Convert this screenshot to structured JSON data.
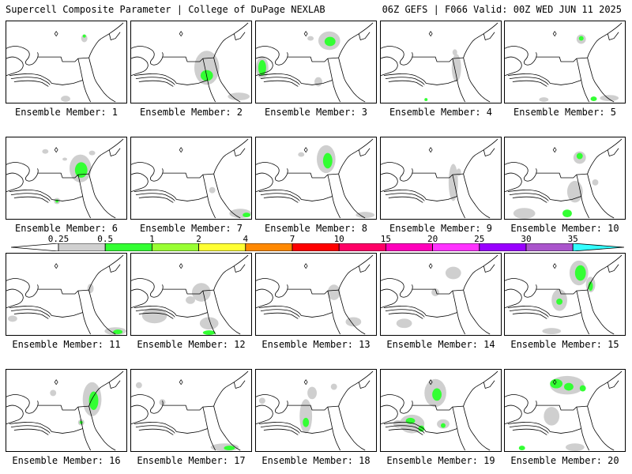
{
  "header": {
    "title_left": "Supercell Composite Parameter | College of DuPage NEXLAB",
    "title_right": "06Z GEFS | F066 Valid: 00Z WED JUN 11 2025"
  },
  "panel_label_prefix": "Ensemble Member:",
  "members": [
    {
      "n": "1",
      "blobs": [
        [
          "g",
          100,
          22,
          4,
          5
        ],
        [
          "g",
          76,
          100,
          6,
          4
        ],
        [
          "G",
          100,
          19,
          2,
          2
        ]
      ]
    },
    {
      "n": "2",
      "blobs": [
        [
          "g",
          97,
          60,
          16,
          22
        ],
        [
          "G",
          97,
          70,
          8,
          7
        ],
        [
          "g",
          138,
          97,
          14,
          5
        ]
      ]
    },
    {
      "n": "3",
      "blobs": [
        [
          "g",
          94,
          25,
          14,
          12
        ],
        [
          "G",
          95,
          26,
          7,
          6
        ],
        [
          "g",
          70,
          22,
          4,
          3
        ],
        [
          "g",
          8,
          60,
          8,
          14
        ],
        [
          "G",
          8,
          60,
          5,
          10
        ],
        [
          "g",
          80,
          78,
          5,
          6
        ]
      ]
    },
    {
      "n": "4",
      "blobs": [
        [
          "g",
          97,
          60,
          6,
          18
        ],
        [
          "g",
          95,
          40,
          3,
          4
        ],
        [
          "G",
          58,
          101,
          2,
          2
        ]
      ]
    },
    {
      "n": "5",
      "blobs": [
        [
          "g",
          98,
          23,
          6,
          6
        ],
        [
          "G",
          98,
          22,
          3,
          3
        ],
        [
          "g",
          134,
          99,
          12,
          4
        ],
        [
          "G",
          114,
          100,
          4,
          3
        ],
        [
          "g",
          50,
          101,
          6,
          3
        ]
      ]
    },
    {
      "n": "6",
      "blobs": [
        [
          "g",
          95,
          40,
          14,
          18
        ],
        [
          "G",
          96,
          42,
          8,
          10
        ],
        [
          "g",
          75,
          28,
          3,
          2
        ],
        [
          "g",
          50,
          18,
          4,
          3
        ],
        [
          "g",
          110,
          20,
          4,
          3
        ],
        [
          "g",
          65,
          82,
          4,
          4
        ],
        [
          "G",
          65,
          82,
          2,
          2
        ]
      ]
    },
    {
      "n": "7",
      "blobs": [
        [
          "g",
          140,
          98,
          14,
          6
        ],
        [
          "G",
          148,
          100,
          5,
          3
        ],
        [
          "g",
          104,
          68,
          4,
          4
        ]
      ]
    },
    {
      "n": "8",
      "blobs": [
        [
          "g",
          90,
          28,
          12,
          18
        ],
        [
          "G",
          92,
          30,
          6,
          10
        ],
        [
          "g",
          58,
          22,
          4,
          3
        ],
        [
          "g",
          140,
          100,
          12,
          4
        ]
      ]
    },
    {
      "n": "9",
      "blobs": [
        [
          "g",
          93,
          58,
          6,
          24
        ],
        [
          "g",
          100,
          45,
          3,
          5
        ]
      ]
    },
    {
      "n": "10",
      "blobs": [
        [
          "g",
          96,
          26,
          8,
          8
        ],
        [
          "G",
          96,
          24,
          4,
          4
        ],
        [
          "g",
          90,
          70,
          10,
          14
        ],
        [
          "G",
          80,
          98,
          6,
          5
        ],
        [
          "g",
          25,
          98,
          14,
          7
        ],
        [
          "g",
          116,
          58,
          4,
          4
        ]
      ]
    },
    {
      "n": "11",
      "blobs": [
        [
          "g",
          140,
          100,
          14,
          5
        ],
        [
          "G",
          143,
          101,
          6,
          3
        ],
        [
          "g",
          108,
          45,
          4,
          6
        ],
        [
          "g",
          8,
          84,
          6,
          4
        ]
      ]
    },
    {
      "n": "12",
      "blobs": [
        [
          "g",
          90,
          50,
          12,
          12
        ],
        [
          "g",
          100,
          90,
          12,
          8
        ],
        [
          "g",
          30,
          80,
          16,
          10
        ],
        [
          "G",
          100,
          102,
          8,
          3
        ],
        [
          "g",
          76,
          60,
          6,
          5
        ]
      ]
    },
    {
      "n": "13",
      "blobs": [
        [
          "g",
          100,
          50,
          8,
          10
        ],
        [
          "g",
          125,
          88,
          10,
          6
        ]
      ]
    },
    {
      "n": "14",
      "blobs": [
        [
          "g",
          93,
          25,
          10,
          8
        ],
        [
          "g",
          30,
          90,
          10,
          6
        ],
        [
          "g",
          70,
          50,
          5,
          5
        ]
      ]
    },
    {
      "n": "15",
      "blobs": [
        [
          "g",
          95,
          25,
          12,
          16
        ],
        [
          "G",
          97,
          25,
          7,
          10
        ],
        [
          "g",
          110,
          40,
          6,
          10
        ],
        [
          "G",
          110,
          42,
          3,
          6
        ],
        [
          "g",
          70,
          60,
          10,
          14
        ],
        [
          "G",
          70,
          62,
          4,
          4
        ],
        [
          "g",
          60,
          100,
          12,
          4
        ]
      ]
    },
    {
      "n": "16",
      "blobs": [
        [
          "g",
          110,
          38,
          12,
          22
        ],
        [
          "G",
          112,
          40,
          6,
          12
        ],
        [
          "g",
          96,
          68,
          4,
          4
        ],
        [
          "G",
          96,
          68,
          2,
          2
        ],
        [
          "g",
          60,
          30,
          4,
          4
        ]
      ]
    },
    {
      "n": "17",
      "blobs": [
        [
          "g",
          120,
          100,
          18,
          5
        ],
        [
          "G",
          126,
          101,
          7,
          3
        ],
        [
          "g",
          10,
          20,
          4,
          4
        ],
        [
          "g",
          40,
          42,
          4,
          4
        ]
      ]
    },
    {
      "n": "18",
      "blobs": [
        [
          "g",
          64,
          60,
          8,
          22
        ],
        [
          "G",
          64,
          68,
          4,
          6
        ],
        [
          "g",
          72,
          30,
          6,
          8
        ],
        [
          "g",
          100,
          22,
          4,
          4
        ],
        [
          "g",
          8,
          40,
          4,
          4
        ]
      ]
    },
    {
      "n": "19",
      "blobs": [
        [
          "g",
          70,
          30,
          14,
          18
        ],
        [
          "G",
          72,
          32,
          6,
          8
        ],
        [
          "g",
          40,
          70,
          16,
          12
        ],
        [
          "G",
          38,
          66,
          6,
          4
        ],
        [
          "G",
          52,
          76,
          4,
          4
        ],
        [
          "g",
          80,
          70,
          8,
          6
        ],
        [
          "G",
          80,
          72,
          3,
          3
        ],
        [
          "g",
          22,
          70,
          6,
          5
        ]
      ]
    },
    {
      "n": "20",
      "blobs": [
        [
          "g",
          80,
          20,
          22,
          12
        ],
        [
          "G",
          66,
          18,
          8,
          6
        ],
        [
          "G",
          82,
          22,
          6,
          5
        ],
        [
          "G",
          100,
          24,
          4,
          4
        ],
        [
          "g",
          60,
          60,
          10,
          12
        ],
        [
          "g",
          90,
          100,
          12,
          5
        ],
        [
          "G",
          22,
          101,
          4,
          3
        ]
      ]
    }
  ],
  "colorbar": {
    "labels": [
      "0.25",
      "0.5",
      "1",
      "2",
      "4",
      "7",
      "10",
      "15",
      "20",
      "25",
      "30",
      "35"
    ],
    "colors": [
      "#d0d0d0",
      "#33ff33",
      "#99ff33",
      "#ffff33",
      "#ff8800",
      "#ff0000",
      "#ff0066",
      "#ff00bb",
      "#ff33ff",
      "#9900ff",
      "#aa55cc",
      "#33ffff"
    ],
    "shade_colors": {
      "g": "#cfcfcf",
      "G": "#33ff33"
    }
  }
}
